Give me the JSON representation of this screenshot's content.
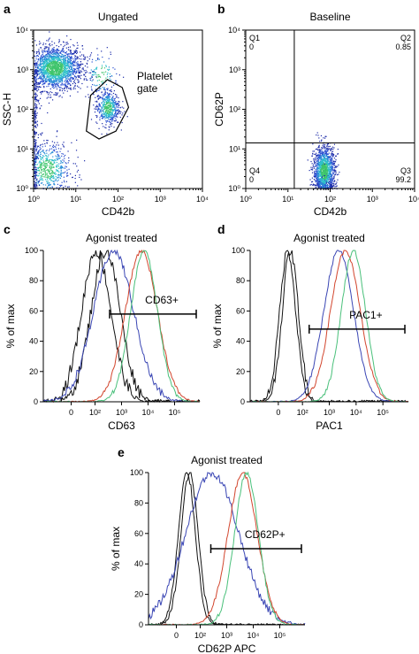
{
  "chart_data": [
    {
      "letter": "a",
      "type": "scatter",
      "title": "Ungated",
      "xlabel": "CD42b",
      "ylabel": "SSC-H",
      "x_ticks": [
        "10⁰",
        "10¹",
        "10²",
        "10³",
        "10⁴"
      ],
      "y_ticks": [
        "10⁰",
        "10¹",
        "10²",
        "10³",
        "10⁴"
      ],
      "xlim_log": [
        0,
        4
      ],
      "ylim_log": [
        0,
        4
      ],
      "scale": "log",
      "gate_label": "Platelet\ngate",
      "clusters_log": [
        {
          "x": 0.25,
          "y": 3.05,
          "density": "high"
        },
        {
          "x": 1.75,
          "y": 2.1,
          "density": "high"
        },
        {
          "x": 0.2,
          "y": 0.4,
          "density": "medium"
        }
      ]
    },
    {
      "letter": "b",
      "type": "scatter",
      "title": "Baseline",
      "xlabel": "CD42b",
      "ylabel": "CD62P",
      "x_ticks": [
        "10⁰",
        "10¹",
        "10²",
        "10³",
        "10⁴"
      ],
      "y_ticks": [
        "10⁰",
        "10¹",
        "10²",
        "10³",
        "10⁴"
      ],
      "xlim_log": [
        0,
        4
      ],
      "ylim_log": [
        0,
        4
      ],
      "scale": "log",
      "quadrants": [
        {
          "name": "Q1",
          "value": "0"
        },
        {
          "name": "Q2",
          "value": "0.85"
        },
        {
          "name": "Q4",
          "value": "0"
        },
        {
          "name": "Q3",
          "value": "99.2"
        }
      ],
      "quadrant_divider_log": {
        "x": 1.15,
        "y": 1.15
      }
    },
    {
      "letter": "c",
      "type": "line",
      "title": "Agonist treated",
      "xlabel": "CD63",
      "ylabel": "% of max",
      "x_ticks": [
        "0",
        "10²",
        "10³",
        "10⁴",
        "10⁵"
      ],
      "y_ticks": [
        "0",
        "20",
        "40",
        "60",
        "80",
        "100"
      ],
      "ylim": [
        0,
        100
      ],
      "gate_label": "CD63+",
      "gate_level": 58,
      "series": [
        {
          "color": "#111111",
          "peak_x": 1.5,
          "width": 0.55,
          "noise": 9
        },
        {
          "color": "#111111",
          "peak_x": 1.85,
          "width": 0.55,
          "noise": 9
        },
        {
          "color": "#3a46b4",
          "peak_x": 2.15,
          "width": 0.75,
          "noise": 6
        },
        {
          "color": "#d2452d",
          "peak_x": 3.2,
          "width": 0.6,
          "noise": 3
        },
        {
          "color": "#49c07a",
          "peak_x": 3.3,
          "width": 0.5,
          "noise": 3
        }
      ]
    },
    {
      "letter": "d",
      "type": "line",
      "title": "Agonist treated",
      "xlabel": "PAC1",
      "ylabel": "% of max",
      "x_ticks": [
        "0",
        "10²",
        "10³",
        "10⁴",
        "10⁵"
      ],
      "y_ticks": [
        "0",
        "20",
        "40",
        "60",
        "80",
        "100"
      ],
      "ylim": [
        0,
        100
      ],
      "gate_label": "PAC1+",
      "gate_level": 48,
      "series": [
        {
          "color": "#111111",
          "peak_x": 0.9,
          "width": 0.3,
          "noise": 7
        },
        {
          "color": "#111111",
          "peak_x": 1.0,
          "width": 0.3,
          "noise": 7
        },
        {
          "color": "#3a46b4",
          "peak_x": 2.8,
          "width": 0.55,
          "noise": 3
        },
        {
          "color": "#d2452d",
          "peak_x": 3.05,
          "width": 0.55,
          "noise": 3
        },
        {
          "color": "#49c07a",
          "peak_x": 3.35,
          "width": 0.45,
          "noise": 3
        }
      ]
    },
    {
      "letter": "e",
      "type": "line",
      "title": "Agonist treated",
      "xlabel": "CD62P APC",
      "ylabel": "% of max",
      "x_ticks": [
        "0",
        "10²",
        "10³",
        "10⁴",
        "10⁵"
      ],
      "y_ticks": [
        "0",
        "20",
        "40",
        "60",
        "80",
        "100"
      ],
      "ylim": [
        0,
        100
      ],
      "gate_label": "CD62P+",
      "gate_level": 50,
      "series": [
        {
          "color": "#111111",
          "peak_x": 0.95,
          "width": 0.32,
          "noise": 5
        },
        {
          "color": "#111111",
          "peak_x": 1.05,
          "width": 0.32,
          "noise": 5
        },
        {
          "color": "#3a46b4",
          "peak_x": 1.9,
          "width": 1.0,
          "noise": 6
        },
        {
          "color": "#d2452d",
          "peak_x": 3.05,
          "width": 0.55,
          "noise": 3
        },
        {
          "color": "#49c07a",
          "peak_x": 3.2,
          "width": 0.45,
          "noise": 3
        }
      ]
    }
  ]
}
